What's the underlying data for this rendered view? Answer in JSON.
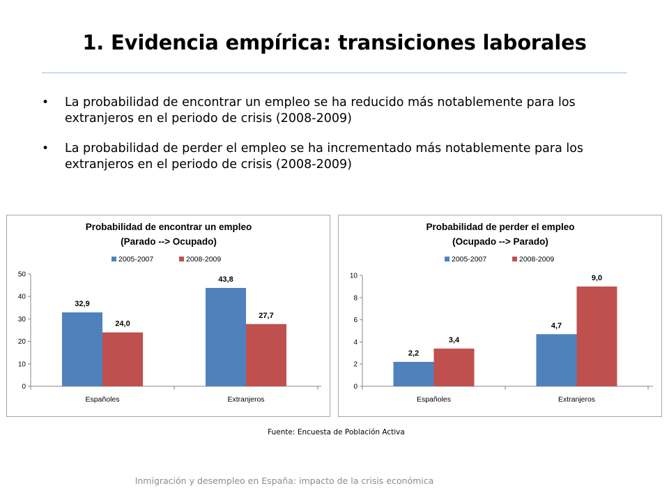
{
  "slide": {
    "title": "1. Evidencia empírica: transiciones laborales",
    "bullets": [
      "La probabilidad de encontrar un empleo se ha reducido más notablemente para los extranjeros en el periodo de crisis (2008-2009)",
      "La probabilidad de perder el empleo se ha incrementado más notablemente para los extranjeros en el periodo de crisis (2008-2009)"
    ],
    "bullet_symbol": "•",
    "source": "Fuente: Encuesta de Población Activa",
    "footer": "Inmigración y desempleo en España: impacto de la crisis económica"
  },
  "chart_data": [
    {
      "type": "bar",
      "title": "Probabilidad de encontrar un empleo",
      "subtitle": "(Parado --> Ocupado)",
      "categories": [
        "Españoles",
        "Extranjeros"
      ],
      "series": [
        {
          "name": "2005-2007",
          "values": [
            32.9,
            43.8
          ],
          "labels": [
            "32,9",
            "43,8"
          ],
          "color": "#4f81bd"
        },
        {
          "name": "2008-2009",
          "values": [
            24.0,
            27.7
          ],
          "labels": [
            "24,0",
            "27,7"
          ],
          "color": "#c0504d"
        }
      ],
      "yticks": [
        0,
        10,
        20,
        30,
        40,
        50
      ],
      "ylim": [
        0,
        50
      ],
      "grid": false,
      "legend": "top-center"
    },
    {
      "type": "bar",
      "title": "Probabilidad de perder el empleo",
      "subtitle": "(Ocupado --> Parado)",
      "categories": [
        "Españoles",
        "Extranjeros"
      ],
      "series": [
        {
          "name": "2005-2007",
          "values": [
            2.2,
            4.7
          ],
          "labels": [
            "2,2",
            "4,7"
          ],
          "color": "#4f81bd"
        },
        {
          "name": "2008-2009",
          "values": [
            3.4,
            9.0
          ],
          "labels": [
            "3,4",
            "9,0"
          ],
          "color": "#c0504d"
        }
      ],
      "yticks": [
        0,
        2,
        4,
        6,
        8,
        10
      ],
      "ylim": [
        0,
        10
      ],
      "grid": false,
      "legend": "top-center"
    }
  ]
}
